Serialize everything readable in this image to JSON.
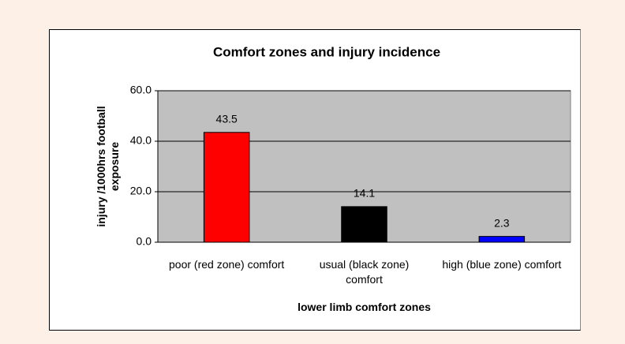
{
  "chart_data": {
    "type": "bar",
    "title": "Comfort zones and injury incidence",
    "x_label": "lower limb comfort zones",
    "y_label": "injury /1000hrs football exposure",
    "categories": [
      "poor (red zone) comfort",
      "usual (black zone) comfort",
      "high (blue zone) comfort"
    ],
    "values": [
      43.5,
      14.1,
      2.3
    ],
    "colors": [
      "#ff0000",
      "#000000",
      "#0000ff"
    ],
    "ylim": [
      0,
      60
    ],
    "yticks": [
      {
        "value": 0,
        "label": "0.0"
      },
      {
        "value": 20,
        "label": "20.0"
      },
      {
        "value": 40,
        "label": "40.0"
      },
      {
        "value": 60,
        "label": "60.0"
      }
    ],
    "grid": true
  }
}
